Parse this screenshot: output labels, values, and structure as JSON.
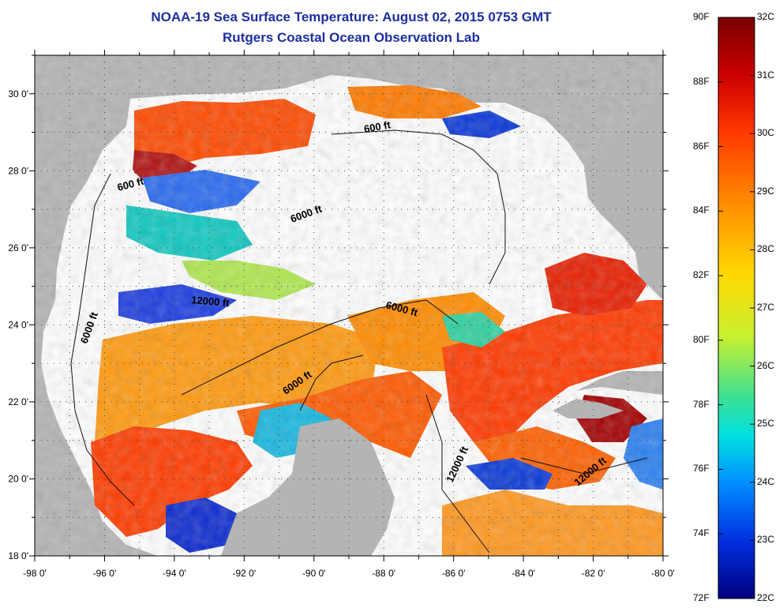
{
  "title": "NOAA-19 Sea Surface Temperature:  August 02, 2015 0753 GMT",
  "subtitle": "Rutgers Coastal Ocean Observation Lab",
  "map": {
    "lon_range": [
      -98,
      -80
    ],
    "lat_range": [
      18,
      31
    ],
    "x_ticks": [
      "-98 0'",
      "-96 0'",
      "-94 0'",
      "-92 0'",
      "-90 0'",
      "-88 0'",
      "-86 0'",
      "-84 0'",
      "-82 0'",
      "-80 0'"
    ],
    "y_ticks": [
      "18 0'",
      "20 0'",
      "22 0'",
      "24 0'",
      "26 0'",
      "28 0'",
      "30 0'"
    ],
    "contour_labels": [
      "600 ft",
      "600 ft",
      "6000 ft",
      "6000 ft",
      "12000 ft",
      "6000 ft",
      "6000 ft",
      "12000 ft",
      "12000 ft"
    ],
    "colors": {
      "land": "#b4b4b4",
      "no_data": "#ffffff",
      "grid": "#555555"
    }
  },
  "colorbar": {
    "fahrenheit": [
      "90F",
      "88F",
      "86F",
      "84F",
      "82F",
      "80F",
      "78F",
      "76F",
      "74F",
      "72F"
    ],
    "celsius": [
      "32C",
      "31C",
      "30C",
      "29C",
      "28C",
      "27C",
      "26C",
      "25C",
      "24C",
      "23C",
      "22C"
    ],
    "gradient": [
      "#7a0000",
      "#cc0000",
      "#ff3a00",
      "#ff8c00",
      "#ffd800",
      "#d8f020",
      "#60e070",
      "#00e0e0",
      "#0090ff",
      "#0030e0",
      "#000080"
    ]
  }
}
